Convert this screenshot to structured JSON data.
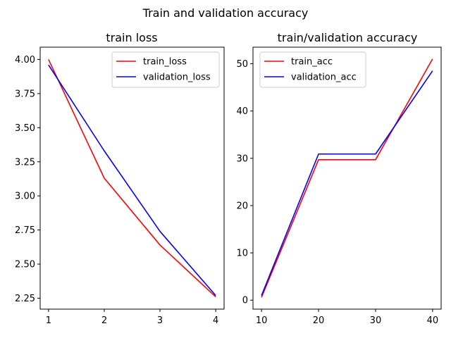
{
  "figure": {
    "suptitle": "Train and validation accuracy"
  },
  "chart_data": [
    {
      "type": "line",
      "title": "train loss",
      "xlabel": "",
      "ylabel": "",
      "x": [
        1,
        2,
        3,
        4
      ],
      "series": [
        {
          "name": "train_loss",
          "color": "#ff0000",
          "values": [
            4.0,
            3.13,
            2.64,
            2.26
          ]
        },
        {
          "name": "validation_loss",
          "color": "#0000ff",
          "values": [
            3.96,
            3.33,
            2.74,
            2.27
          ]
        }
      ],
      "xlim": [
        0.85,
        4.15
      ],
      "ylim": [
        2.17,
        4.09
      ],
      "xticks": [
        1,
        2,
        3,
        4
      ],
      "xtick_labels": [
        "1",
        "2",
        "3",
        "4"
      ],
      "yticks": [
        2.25,
        2.5,
        2.75,
        3.0,
        3.25,
        3.5,
        3.75,
        4.0
      ],
      "ytick_labels": [
        "2.25",
        "2.50",
        "2.75",
        "3.00",
        "3.25",
        "3.50",
        "3.75",
        "4.00"
      ],
      "legend": "upper-right",
      "grid": false
    },
    {
      "type": "line",
      "title": "train/validation accuracy",
      "xlabel": "",
      "ylabel": "",
      "x": [
        10,
        20,
        30,
        40
      ],
      "series": [
        {
          "name": "train_acc",
          "color": "#ff0000",
          "values": [
            0.6,
            29.7,
            29.7,
            51.0
          ]
        },
        {
          "name": "validation_acc",
          "color": "#0000ff",
          "values": [
            1.0,
            30.9,
            30.9,
            48.5
          ]
        }
      ],
      "xlim": [
        8.5,
        41.5
      ],
      "ylim": [
        -1.9,
        53.5
      ],
      "xticks": [
        10,
        20,
        30,
        40
      ],
      "xtick_labels": [
        "10",
        "20",
        "30",
        "40"
      ],
      "yticks": [
        0,
        10,
        20,
        30,
        40,
        50
      ],
      "ytick_labels": [
        "0",
        "10",
        "20",
        "30",
        "40",
        "50"
      ],
      "legend": "upper-left",
      "grid": false
    }
  ]
}
